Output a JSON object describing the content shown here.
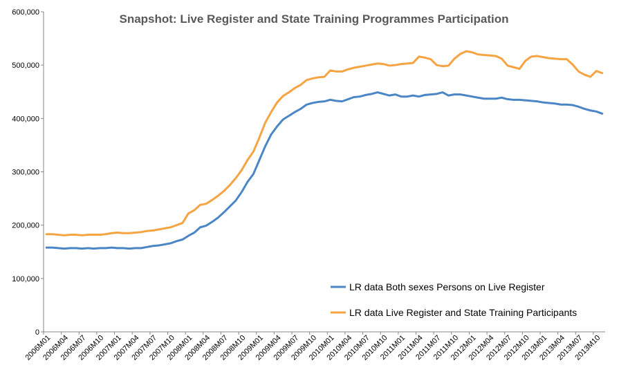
{
  "chart_data": {
    "type": "line",
    "title": "Snapshot: Live Register and State Training Programmes Participation",
    "xlabel": "",
    "ylabel": "",
    "ylim": [
      0,
      600000
    ],
    "yticks": [
      0,
      100000,
      200000,
      300000,
      400000,
      500000,
      600000
    ],
    "ytick_labels": [
      "0",
      "100,000",
      "200,000",
      "300,000",
      "400,000",
      "500,000",
      "600,000"
    ],
    "grid": false,
    "legend_position": "bottom-right",
    "x_start": "2006M01",
    "xtick_labels": [
      "2006M01",
      "2006M04",
      "2006M07",
      "2006M10",
      "2007M01",
      "2007M04",
      "2007M07",
      "2007M10",
      "2008M01",
      "2008M04",
      "2008M07",
      "2008M10",
      "2009M01",
      "2009M04",
      "2009M07",
      "2009M10",
      "2010M01",
      "2010M04",
      "2010M07",
      "2010M10",
      "2011M01",
      "2011M04",
      "2011M07",
      "2011M10",
      "2012M01",
      "2012M04",
      "2012M07",
      "2012M10",
      "2013M01",
      "2013M04",
      "2013M07",
      "2013M10"
    ],
    "series": [
      {
        "name": "LR data Both sexes Persons on Live Register",
        "color": "#4a86c5",
        "values": [
          158000,
          158000,
          157000,
          156000,
          157000,
          157000,
          156000,
          157000,
          156000,
          157000,
          157000,
          158000,
          157000,
          157000,
          156000,
          157000,
          157000,
          159000,
          161000,
          162000,
          164000,
          166000,
          170000,
          173000,
          180000,
          186000,
          196000,
          199000,
          206000,
          214000,
          224000,
          235000,
          246000,
          262000,
          281000,
          296000,
          322000,
          348000,
          370000,
          385000,
          398000,
          405000,
          412000,
          418000,
          426000,
          429000,
          431000,
          432000,
          435000,
          433000,
          432000,
          436000,
          440000,
          441000,
          444000,
          446000,
          449000,
          446000,
          443000,
          445000,
          441000,
          441000,
          443000,
          441000,
          444000,
          445000,
          446000,
          449000,
          443000,
          445000,
          445000,
          443000,
          441000,
          439000,
          437000,
          437000,
          437000,
          439000,
          436000,
          435000,
          435000,
          434000,
          433000,
          432000,
          430000,
          429000,
          428000,
          426000,
          426000,
          425000,
          422000,
          418000,
          415000,
          413000,
          409000
        ]
      },
      {
        "name": "LR data Live Register and State Training Participants",
        "color": "#f6a341",
        "values": [
          183000,
          183000,
          182000,
          181000,
          182000,
          182000,
          181000,
          182000,
          182000,
          182000,
          183000,
          185000,
          186000,
          185000,
          185000,
          186000,
          187000,
          189000,
          190000,
          192000,
          194000,
          196000,
          200000,
          204000,
          222000,
          228000,
          238000,
          240000,
          247000,
          255000,
          264000,
          275000,
          288000,
          303000,
          322000,
          338000,
          364000,
          392000,
          412000,
          430000,
          442000,
          449000,
          457000,
          463000,
          472000,
          475000,
          477000,
          478000,
          490000,
          488000,
          488000,
          492000,
          495000,
          497000,
          499000,
          501000,
          503000,
          502000,
          499000,
          500000,
          502000,
          503000,
          504000,
          516000,
          514000,
          511000,
          500000,
          498000,
          499000,
          512000,
          521000,
          526000,
          524000,
          520000,
          519000,
          518000,
          517000,
          512000,
          499000,
          496000,
          493000,
          508000,
          516000,
          517000,
          515000,
          513000,
          512000,
          511000,
          511000,
          501000,
          488000,
          482000,
          478000,
          489000,
          485000
        ]
      }
    ]
  }
}
